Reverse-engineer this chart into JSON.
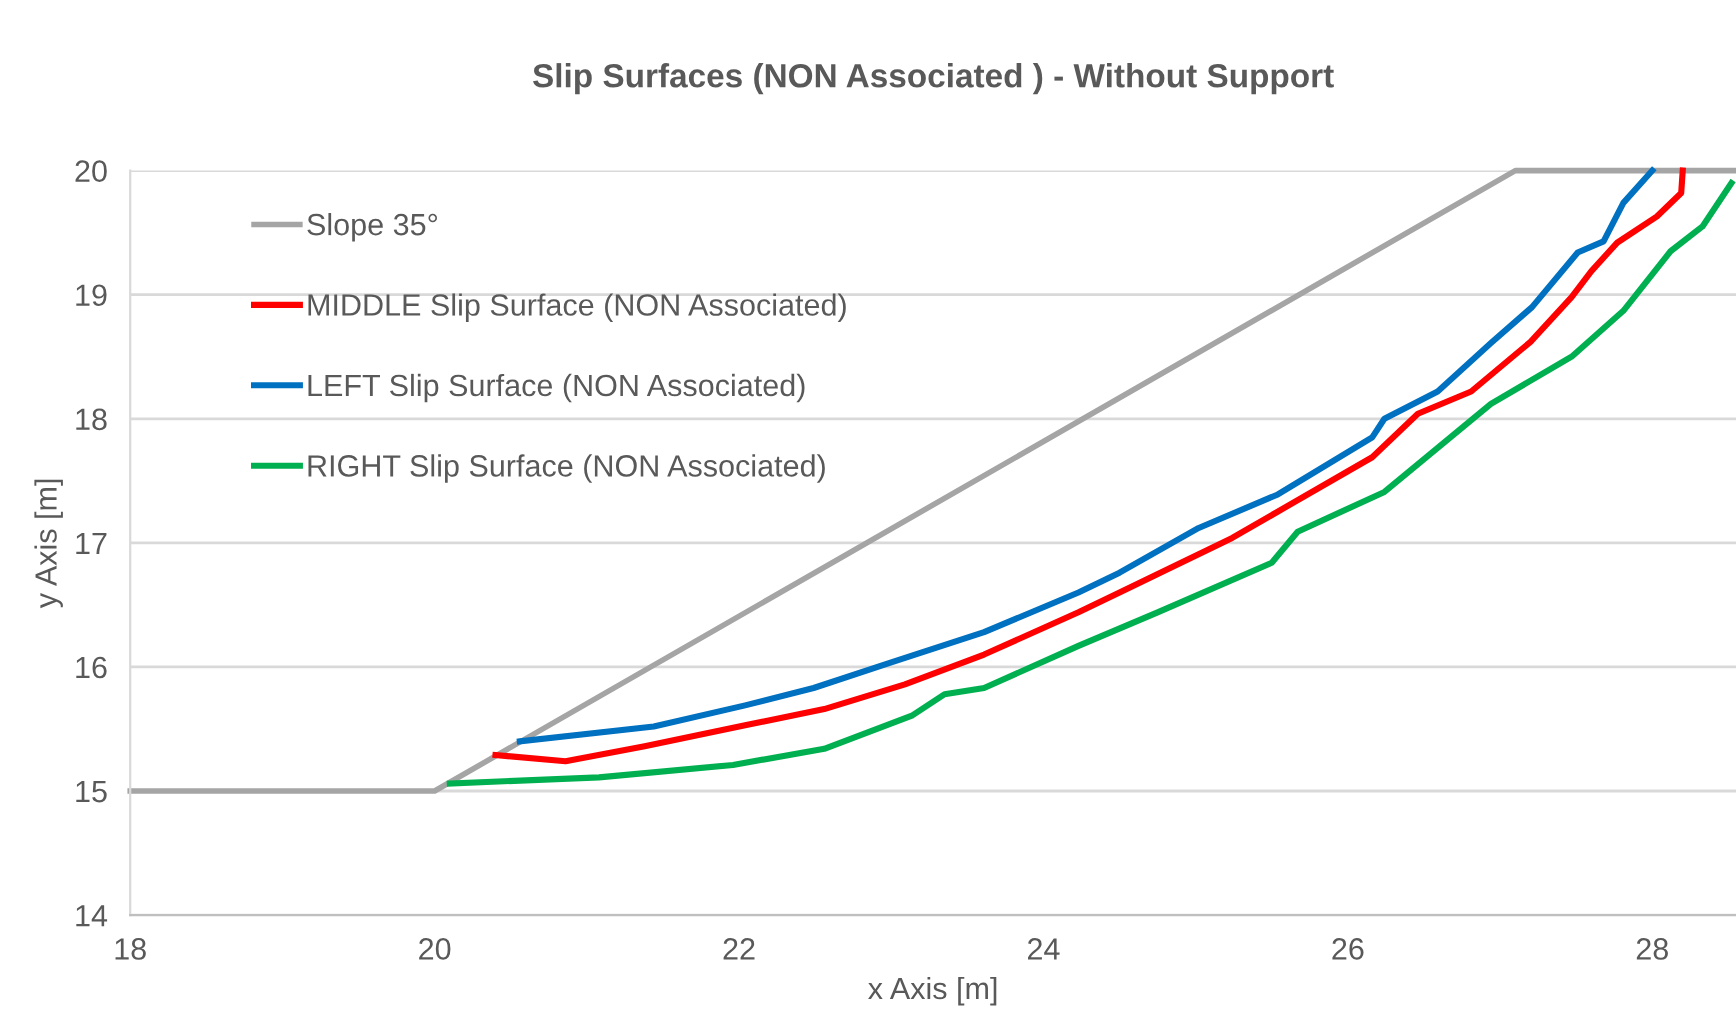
{
  "chart_data": {
    "type": "line",
    "title": "Slip Surfaces (NON Associated ) - Without Support",
    "xlabel": "x Axis [m]",
    "ylabel": "y Axis [m]",
    "xlim": [
      18,
      28.55
    ],
    "ylim": [
      14,
      20
    ],
    "xticks": [
      18,
      20,
      22,
      24,
      26,
      28
    ],
    "yticks": [
      14,
      15,
      16,
      17,
      18,
      19,
      20
    ],
    "grid": "y",
    "legend": "top left",
    "marker": "none",
    "line_style": "solid",
    "series": [
      {
        "name": "Slope 35°",
        "color": "#a5a5a5",
        "x": [
          18,
          20,
          27.1,
          28.55
        ],
        "values": [
          15,
          15,
          20,
          20
        ]
      },
      {
        "name": "MIDDLE Slip Surface (NON Associated)",
        "color": "#ff0000",
        "x": [
          20.4,
          20.86,
          21.38,
          22.04,
          22.56,
          23.09,
          23.61,
          24.23,
          24.5,
          25.24,
          26.16,
          26.46,
          26.81,
          27.2,
          27.47,
          27.6,
          27.77,
          28.03,
          28.19,
          28.2
        ],
        "values": [
          15.29,
          15.24,
          15.36,
          15.53,
          15.66,
          15.86,
          16.1,
          16.44,
          16.6,
          17.04,
          17.69,
          18.04,
          18.22,
          18.62,
          18.98,
          19.19,
          19.42,
          19.63,
          19.82,
          20
        ]
      },
      {
        "name": "LEFT Slip Surface (NON Associated)",
        "color": "#0070c0",
        "x": [
          20.56,
          21.44,
          22.04,
          22.49,
          23.01,
          23.61,
          24.23,
          24.5,
          25.02,
          25.54,
          26.16,
          26.24,
          26.59,
          26.94,
          27.21,
          27.51,
          27.68,
          27.81,
          28.0
        ],
        "values": [
          15.4,
          15.52,
          15.69,
          15.83,
          16.04,
          16.28,
          16.6,
          16.76,
          17.12,
          17.39,
          17.85,
          18.0,
          18.22,
          18.61,
          18.9,
          19.34,
          19.43,
          19.74,
          20
        ]
      },
      {
        "name": "RIGHT Slip Surface (NON Associated)",
        "color": "#00b050",
        "x": [
          20.1,
          21.08,
          21.96,
          22.56,
          23.14,
          23.35,
          23.61,
          24.23,
          24.75,
          25.5,
          25.67,
          26.24,
          26.94,
          27.47,
          27.81,
          28.12,
          28.33,
          28.52
        ],
        "values": [
          15.06,
          15.11,
          15.21,
          15.34,
          15.61,
          15.78,
          15.83,
          16.17,
          16.44,
          16.84,
          17.09,
          17.41,
          18.12,
          18.5,
          18.87,
          19.35,
          19.55,
          19.9
        ]
      }
    ]
  }
}
